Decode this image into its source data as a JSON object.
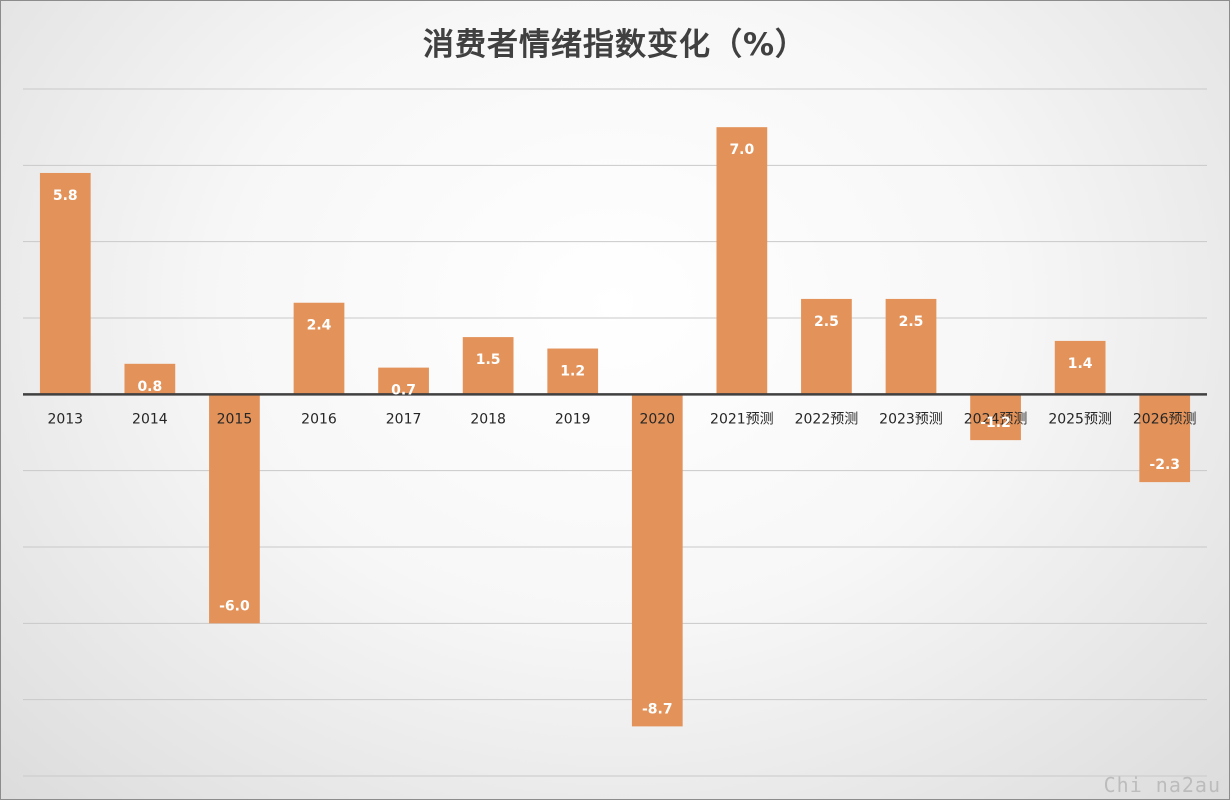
{
  "chart_data": {
    "type": "bar",
    "title": "消费者情绪指数变化（%）",
    "categories": [
      "2013",
      "2014",
      "2015",
      "2016",
      "2017",
      "2018",
      "2019",
      "2020",
      "2021预测",
      "2022预测",
      "2023预测",
      "2024预测",
      "2025预测",
      "2026预测"
    ],
    "values": [
      5.8,
      0.8,
      -6.0,
      2.4,
      0.7,
      1.5,
      1.2,
      -8.7,
      7.0,
      2.5,
      2.5,
      -1.2,
      1.4,
      -2.3
    ],
    "data_labels": [
      "5.8",
      "0.8",
      "-6.0",
      "2.4",
      "0.7",
      "1.5",
      "1.2",
      "-8.7",
      "7.0",
      "2.5",
      "2.5",
      "-1.2",
      "1.4",
      "-2.3"
    ],
    "ylim": [
      -10,
      8
    ],
    "grid": true,
    "legend": "none",
    "bar_color": "#e3935a"
  },
  "watermark": "Chi na2au"
}
